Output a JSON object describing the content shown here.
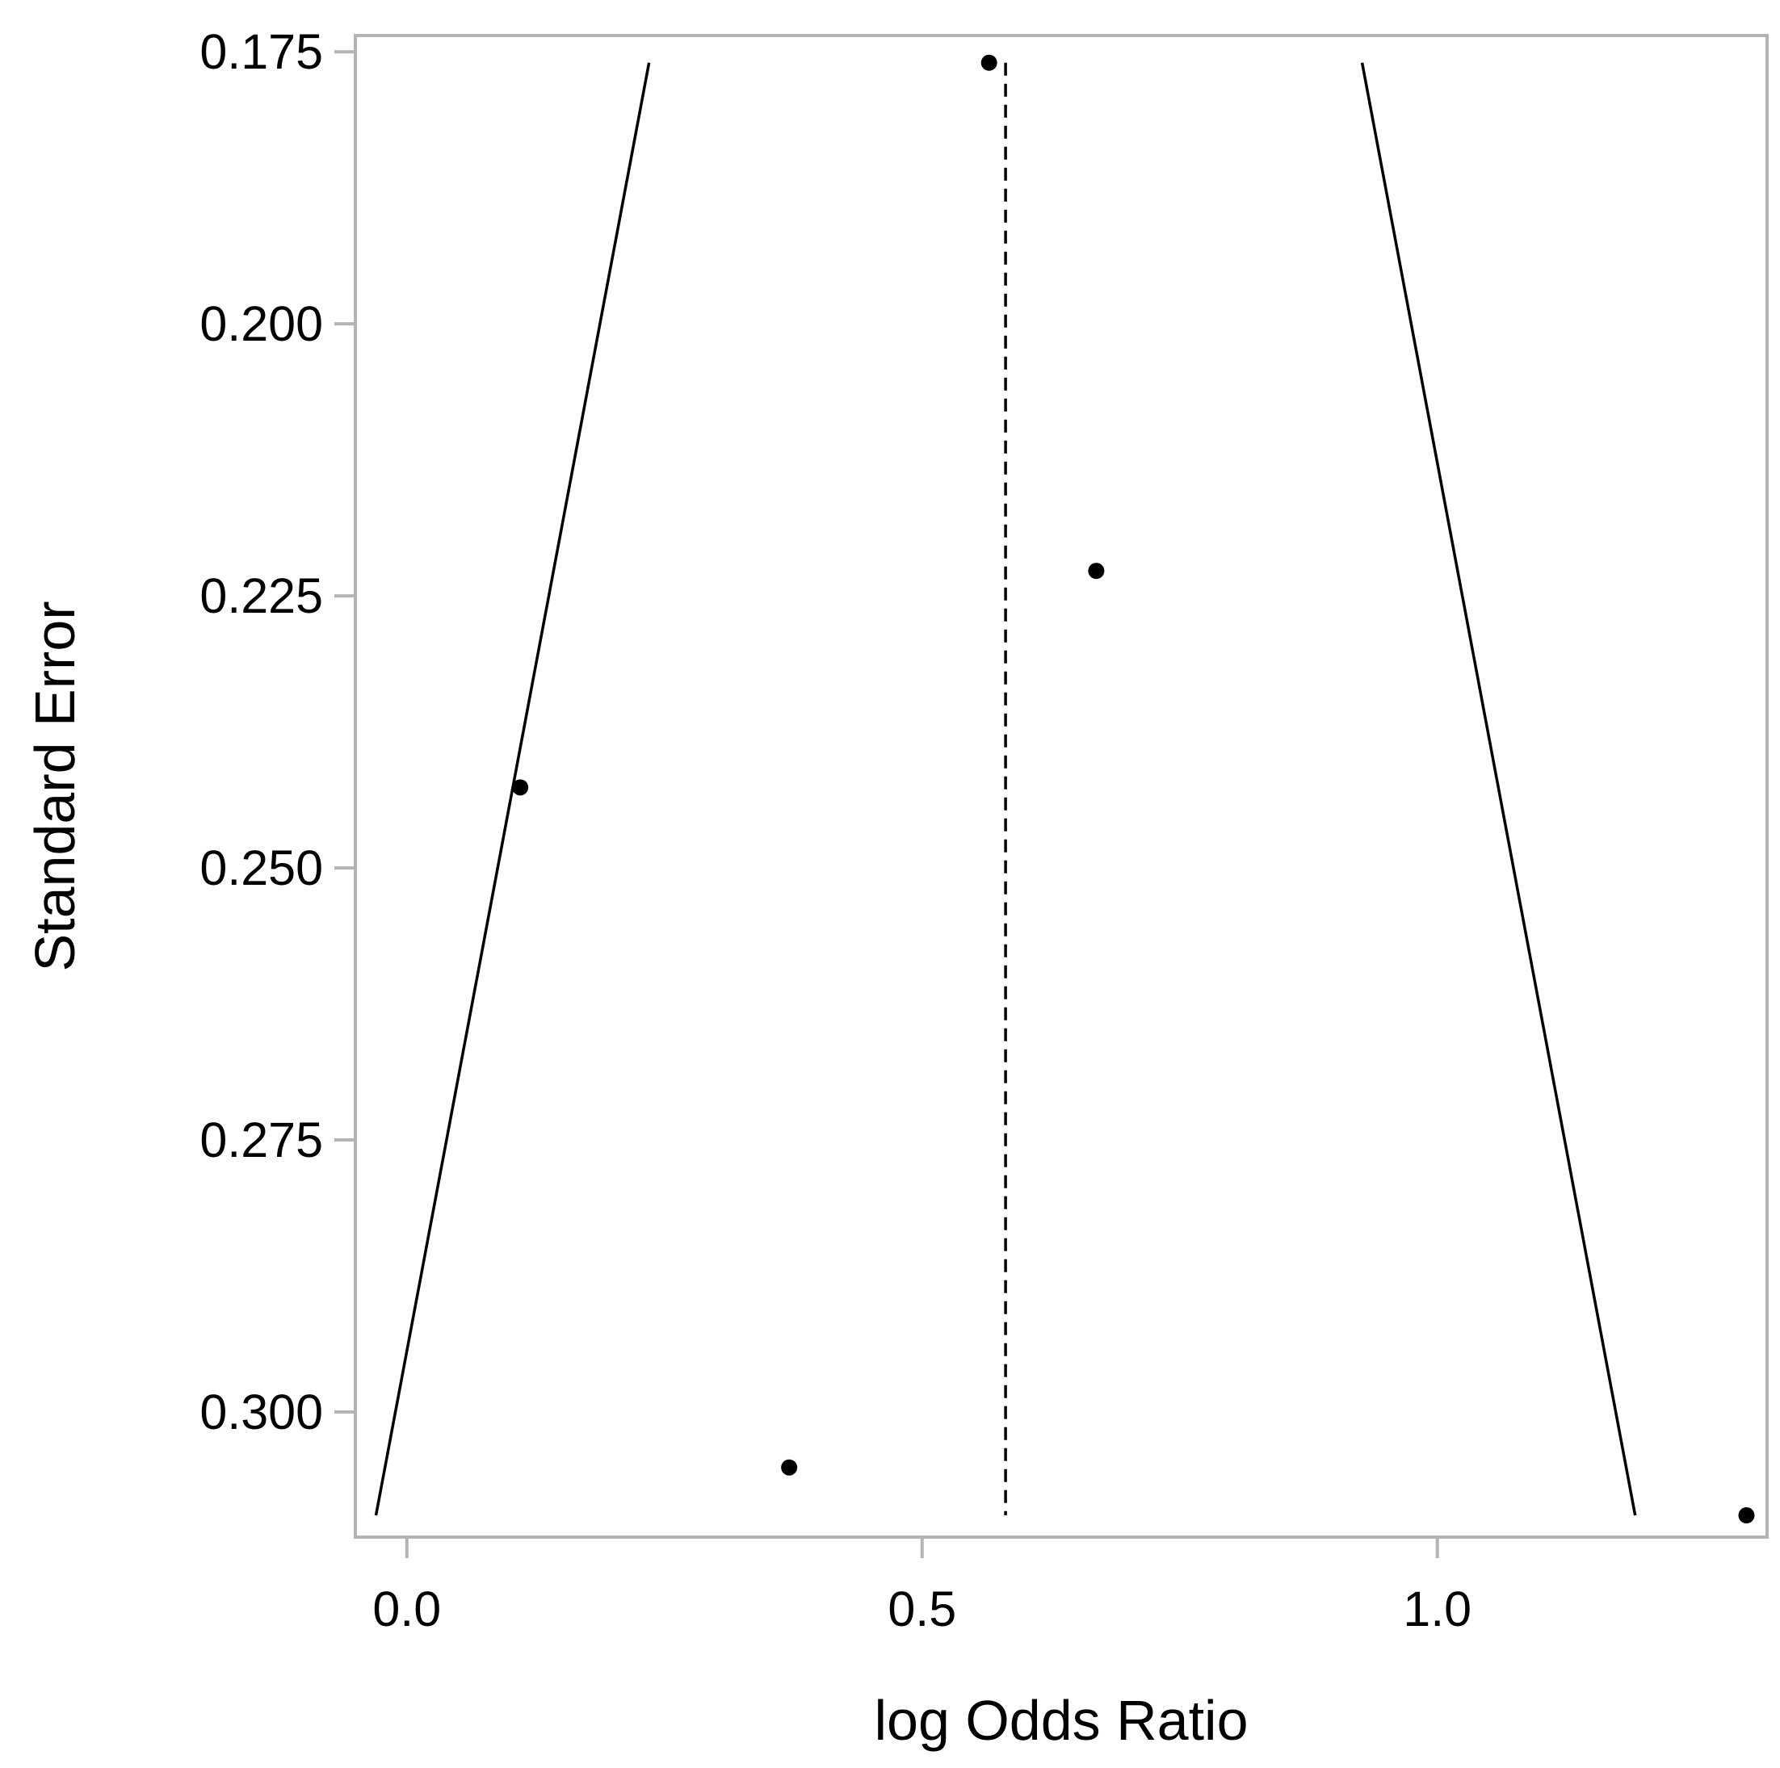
{
  "chart_data": {
    "type": "scatter",
    "subtype": "funnel-plot",
    "title": "",
    "xlabel": "log Odds Ratio",
    "ylabel": "Standard Error",
    "xlim": [
      -0.05,
      1.32
    ],
    "ylim": [
      0.1735,
      0.3115
    ],
    "y_inverted": true,
    "grid": false,
    "x_ticks": [
      {
        "value": 0.0,
        "label": "0.0"
      },
      {
        "value": 0.5,
        "label": "0.5"
      },
      {
        "value": 1.0,
        "label": "1.0"
      }
    ],
    "y_ticks": [
      {
        "value": 0.175,
        "label": "0.175"
      },
      {
        "value": 0.2,
        "label": "0.200"
      },
      {
        "value": 0.225,
        "label": "0.225"
      },
      {
        "value": 0.25,
        "label": "0.250"
      },
      {
        "value": 0.275,
        "label": "0.275"
      },
      {
        "value": 0.3,
        "label": "0.300"
      }
    ],
    "points": [
      {
        "x": 0.565,
        "y": 0.176
      },
      {
        "x": 0.669,
        "y": 0.2227
      },
      {
        "x": 0.11,
        "y": 0.2426
      },
      {
        "x": 0.371,
        "y": 0.3051
      },
      {
        "x": 1.3,
        "y": 0.3095
      }
    ],
    "pooled_estimate": 0.581,
    "funnel_limits": {
      "left": [
        {
          "x": 0.235,
          "y": 0.176
        },
        {
          "x": -0.03,
          "y": 0.3095
        }
      ],
      "right": [
        {
          "x": 0.927,
          "y": 0.176
        },
        {
          "x": 1.192,
          "y": 0.3095
        }
      ]
    },
    "colors": {
      "points": "#000000",
      "lines": "#000000",
      "frame": "#b4b4b4"
    }
  }
}
